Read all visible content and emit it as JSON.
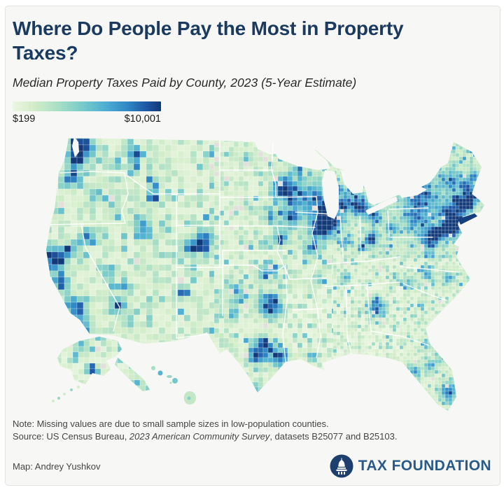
{
  "header": {
    "title": "Where Do People Pay the Most in Property Taxes?",
    "subtitle": "Median Property Taxes Paid by County, 2023 (5-Year Estimate)"
  },
  "legend": {
    "min_label": "$199",
    "max_label": "$10,001"
  },
  "footer": {
    "note": "Note: Missing values are due to small sample sizes in low-population counties.",
    "source_prefix": "Source: US Census Bureau, ",
    "source_italic": "2023 American Community Survey",
    "source_suffix": ", datasets B25077 and B25103.",
    "credit": "Map: Andrey Yushkov",
    "brand": "TAX FOUNDATION"
  },
  "colors": {
    "title_navy": "#1b3a5f",
    "brand_blue": "#2a5a88",
    "logo_circle_navy": "#1d3f6e",
    "card_background": "#f7f7f5",
    "body_text": "#454545"
  },
  "chart_data": {
    "type": "choropleth",
    "title": "Where Do People Pay the Most in Property Taxes?",
    "metric": "Median property taxes paid",
    "geography": "US counties (incl. Alaska and Hawaii)",
    "period": "2023 (5-Year Estimate)",
    "unit": "USD",
    "scale": {
      "kind": "continuous",
      "min_value": 199,
      "max_value": 10001,
      "min_label": "$199",
      "max_label": "$10,001",
      "stops": [
        "#ebf6e3",
        "#d3edc9",
        "#abdfc5",
        "#7cccc9",
        "#4fb0d2",
        "#2f86c4",
        "#1f57a6",
        "#123a78"
      ]
    },
    "missing_color": "#e3e0db",
    "missing_note": "Missing values are due to small sample sizes in low-population counties.",
    "high_tax_regions": [
      "New Jersey / New York City metro",
      "Connecticut, Boston & southern New England",
      "Chicago (Cook & collar counties)",
      "Seattle-Puget Sound",
      "San Francisco Bay Area",
      "Los Angeles & San Diego coast",
      "Denver Front Range",
      "Minneapolis-St. Paul & Wisconsin",
      "Dallas-Fort Worth, Austin & Houston",
      "Washington DC & Northern Virginia",
      "Atlanta metro",
      "Salt Lake City & Jackson Hole",
      "Southeast Florida"
    ],
    "low_tax_regions": [
      "Deep South",
      "Great Plains",
      "Appalachia",
      "rural Mountain West",
      "Alaska interior"
    ],
    "coordinate_space": "map_svg_660x420",
    "hotspots": [
      [
        "seattle-king-county",
        60,
        30,
        12,
        1.0
      ],
      [
        "tacoma-olympia",
        54,
        50,
        8,
        0.7
      ],
      [
        "portland-metro",
        48,
        72,
        8,
        0.75
      ],
      [
        "bend-deschutes",
        78,
        95,
        6,
        0.45
      ],
      [
        "spokane-coeur-dalene",
        108,
        52,
        5,
        0.45
      ],
      [
        "flathead-mt",
        140,
        40,
        6,
        0.6
      ],
      [
        "missoula-mt",
        138,
        62,
        5,
        0.45
      ],
      [
        "bozeman-gallatin",
        165,
        80,
        6,
        0.5
      ],
      [
        "jackson-teton",
        162,
        100,
        6,
        0.9
      ],
      [
        "boise-ada",
        105,
        105,
        6,
        0.5
      ],
      [
        "salt-lake-park-city",
        150,
        148,
        8,
        0.75
      ],
      [
        "reno-tahoe",
        70,
        158,
        7,
        0.6
      ],
      [
        "sacramento",
        45,
        175,
        7,
        0.6
      ],
      [
        "sf-bay-area",
        22,
        190,
        11,
        1.0
      ],
      [
        "central-ca-coast",
        32,
        225,
        8,
        0.65
      ],
      [
        "los-angeles",
        52,
        262,
        11,
        0.85
      ],
      [
        "san-diego",
        63,
        288,
        7,
        0.85
      ],
      [
        "las-vegas",
        97,
        210,
        7,
        0.5
      ],
      [
        "phoenix-maricopa",
        115,
        255,
        9,
        0.5
      ],
      [
        "tucson-pima",
        128,
        278,
        6,
        0.4
      ],
      [
        "flagstaff-coconino",
        125,
        230,
        5,
        0.35
      ],
      [
        "santa-fe-albuquerque",
        205,
        238,
        6,
        0.5
      ],
      [
        "denver-front-range",
        235,
        165,
        10,
        0.8
      ],
      [
        "colorado-mountains",
        215,
        172,
        9,
        0.55
      ],
      [
        "omaha",
        330,
        130,
        6,
        0.6
      ],
      [
        "kansas-city",
        345,
        160,
        7,
        0.6
      ],
      [
        "wichita",
        320,
        168,
        5,
        0.4
      ],
      [
        "oklahoma-city",
        318,
        212,
        6,
        0.45
      ],
      [
        "tulsa",
        332,
        205,
        5,
        0.5
      ],
      [
        "dallas-fort-worth",
        330,
        255,
        11,
        0.95
      ],
      [
        "west-texas-lubbock",
        280,
        235,
        9,
        0.4
      ],
      [
        "midland-odessa",
        278,
        262,
        6,
        0.45
      ],
      [
        "austin",
        318,
        315,
        9,
        0.9
      ],
      [
        "san-antonio",
        308,
        330,
        7,
        0.75
      ],
      [
        "houston",
        342,
        330,
        9,
        0.9
      ],
      [
        "south-texas-rio-grande",
        310,
        375,
        6,
        0.5
      ],
      [
        "el-paso",
        245,
        292,
        4,
        0.4
      ],
      [
        "minneapolis-st-paul",
        352,
        88,
        11,
        0.85
      ],
      [
        "duluth",
        368,
        60,
        5,
        0.5
      ],
      [
        "wisconsin",
        390,
        100,
        16,
        0.5
      ],
      [
        "madison",
        398,
        118,
        6,
        0.7
      ],
      [
        "milwaukee",
        412,
        115,
        5,
        0.75
      ],
      [
        "des-moines",
        358,
        130,
        6,
        0.5
      ],
      [
        "iowa",
        360,
        125,
        14,
        0.3
      ],
      [
        "chicago-cook",
        417,
        132,
        9,
        1.0
      ],
      [
        "chicago-collar",
        408,
        142,
        10,
        0.7
      ],
      [
        "northern-illinois",
        400,
        148,
        12,
        0.5
      ],
      [
        "st-louis",
        392,
        176,
        7,
        0.55
      ],
      [
        "detroit",
        458,
        115,
        9,
        0.7
      ],
      [
        "michigan",
        440,
        105,
        14,
        0.4
      ],
      [
        "grand-rapids",
        432,
        112,
        5,
        0.55
      ],
      [
        "traverse-city",
        428,
        90,
        5,
        0.45
      ],
      [
        "indianapolis",
        437,
        165,
        6,
        0.55
      ],
      [
        "cleveland",
        478,
        128,
        7,
        0.6
      ],
      [
        "columbus",
        475,
        160,
        6,
        0.7
      ],
      [
        "cincinnati",
        460,
        172,
        5,
        0.5
      ],
      [
        "pittsburgh",
        505,
        145,
        6,
        0.5
      ],
      [
        "nashville",
        438,
        215,
        5,
        0.4
      ],
      [
        "memphis",
        400,
        218,
        5,
        0.45
      ],
      [
        "atlanta",
        482,
        258,
        9,
        0.7
      ],
      [
        "new-orleans",
        390,
        328,
        6,
        0.5
      ],
      [
        "jacksonville",
        552,
        310,
        5,
        0.4
      ],
      [
        "orlando",
        558,
        342,
        6,
        0.5
      ],
      [
        "tampa",
        536,
        350,
        6,
        0.55
      ],
      [
        "southeast-florida",
        586,
        380,
        9,
        0.65
      ],
      [
        "florida-east-coast",
        575,
        332,
        6,
        0.4
      ],
      [
        "charlotte",
        530,
        222,
        6,
        0.45
      ],
      [
        "raleigh-durham",
        555,
        210,
        6,
        0.5
      ],
      [
        "coastal-carolina",
        585,
        215,
        6,
        0.45
      ],
      [
        "washington-dc-nova",
        558,
        160,
        8,
        0.9
      ],
      [
        "baltimore",
        568,
        152,
        6,
        0.8
      ],
      [
        "richmond",
        560,
        185,
        4,
        0.4
      ],
      [
        "philadelphia",
        580,
        148,
        6,
        0.85
      ],
      [
        "pennsylvania",
        540,
        135,
        15,
        0.35
      ],
      [
        "new-jersey",
        590,
        142,
        9,
        1.0
      ],
      [
        "new-york-city",
        596,
        135,
        6,
        1.0
      ],
      [
        "hudson-valley",
        585,
        120,
        8,
        0.7
      ],
      [
        "upstate-new-york",
        545,
        100,
        18,
        0.55
      ],
      [
        "connecticut",
        605,
        115,
        7,
        0.85
      ],
      [
        "rhode-island",
        615,
        112,
        4,
        0.7
      ],
      [
        "boston",
        618,
        100,
        7,
        0.9
      ],
      [
        "western-massachusetts",
        600,
        105,
        6,
        0.7
      ],
      [
        "southern-new-hampshire",
        608,
        85,
        6,
        0.6
      ],
      [
        "vermont",
        590,
        78,
        9,
        0.5
      ],
      [
        "southern-maine",
        620,
        72,
        6,
        0.5
      ],
      [
        "anchorage-ak",
        78,
        348,
        5,
        0.7
      ],
      [
        "northwest-alaska",
        60,
        315,
        9,
        0.4
      ],
      [
        "juneau-southeast-ak",
        140,
        368,
        5,
        0.45
      ]
    ]
  }
}
